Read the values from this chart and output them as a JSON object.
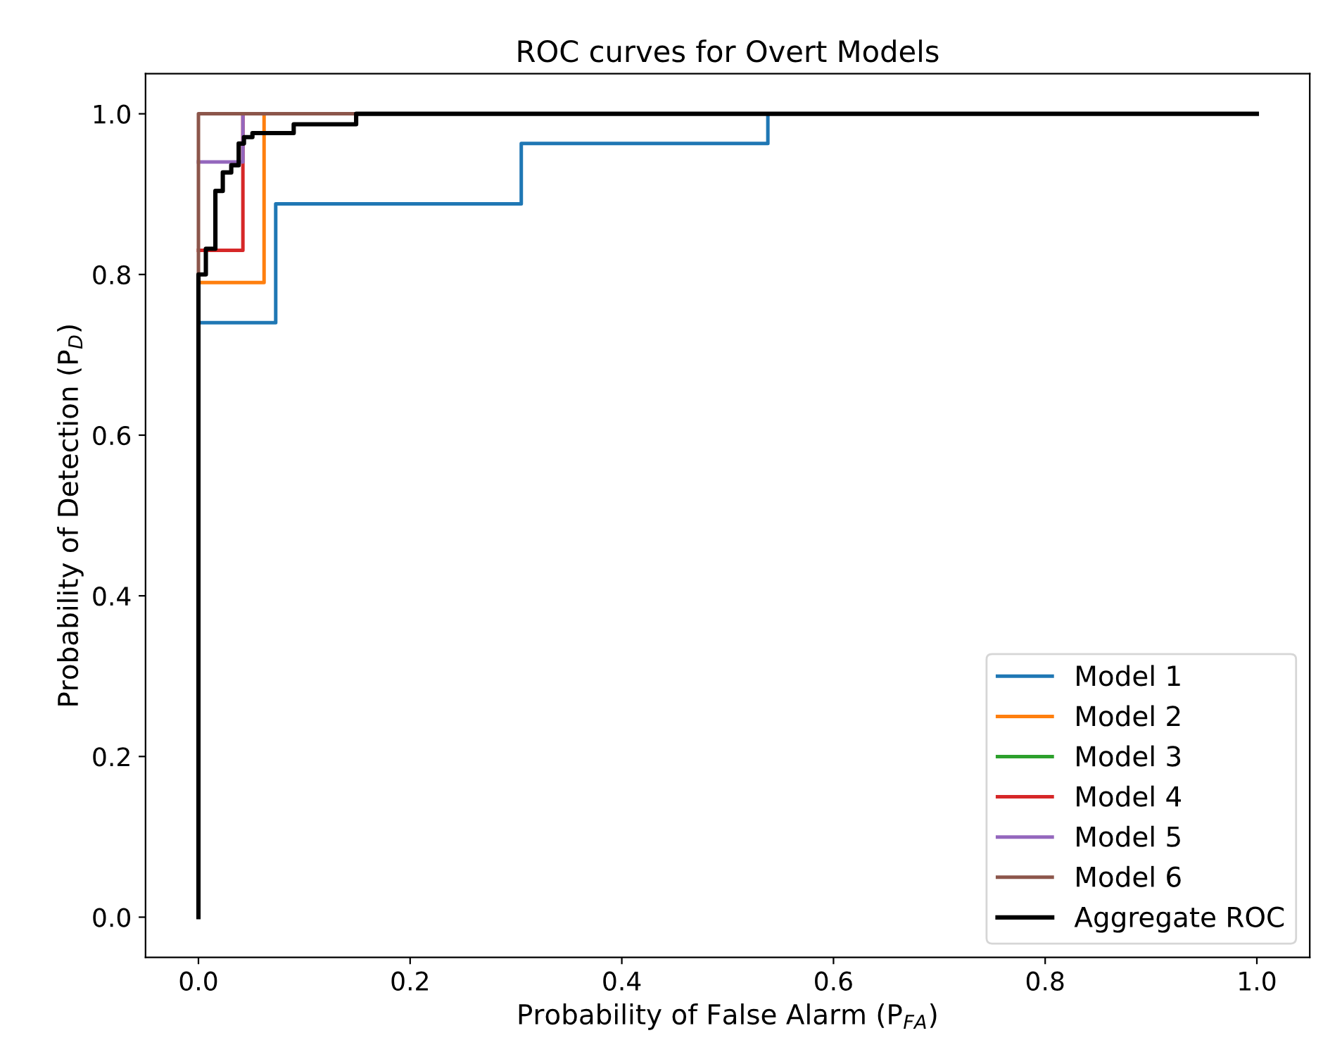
{
  "chart_data": {
    "type": "step",
    "title": "ROC curves for Overt Models",
    "xlabel": "Probability of False Alarm (P$_{FA}$)",
    "ylabel": "Probability of Detection (P$_{D}$)",
    "xlim": [
      -0.05,
      1.05
    ],
    "ylim": [
      -0.05,
      1.05
    ],
    "xticks": [
      {
        "value": 0,
        "label": "0.0"
      },
      0.2,
      0.4,
      0.6,
      0.8,
      {
        "value": 1,
        "label": "1.0"
      }
    ],
    "yticks": [
      {
        "value": 0,
        "label": "0.0"
      },
      0.2,
      0.4,
      0.6,
      0.8,
      {
        "value": 1,
        "label": "1.0"
      }
    ],
    "grid": false,
    "legend": "bottom right",
    "series": [
      {
        "name": "Model 1",
        "color": "#1f77b4",
        "x": [
          0,
          0.073,
          0.305,
          0.538
        ],
        "values": [
          0.74,
          0.888,
          0.963,
          1.0
        ]
      },
      {
        "name": "Model 2",
        "color": "#ff7f0e",
        "x": [
          0,
          0.062
        ],
        "values": [
          0.79,
          1.0
        ]
      },
      {
        "name": "Model 3",
        "color": "#2ca02c"
      },
      {
        "name": "Model 4",
        "color": "#d62728",
        "x": [
          0,
          0.042
        ],
        "values": [
          0.83,
          1.0
        ]
      },
      {
        "name": "Model 5",
        "color": "#9467bd",
        "x": [
          0,
          0.042
        ],
        "values": [
          0.94,
          1.0
        ]
      },
      {
        "name": "Model 6",
        "color": "#8c564b",
        "x": [
          0,
          0,
          0.149
        ],
        "values": [
          0.8,
          1.0,
          1.0
        ]
      },
      {
        "name": "Aggregate ROC",
        "color": "#000000",
        "x": [
          0,
          0,
          0.007,
          0.016,
          0.023,
          0.031,
          0.038,
          0.043,
          0.051,
          0.09,
          0.149,
          1.0
        ],
        "values": [
          0,
          0.8,
          0.832,
          0.904,
          0.927,
          0.936,
          0.963,
          0.971,
          0.976,
          0.987,
          1.0,
          1.0
        ]
      }
    ]
  }
}
